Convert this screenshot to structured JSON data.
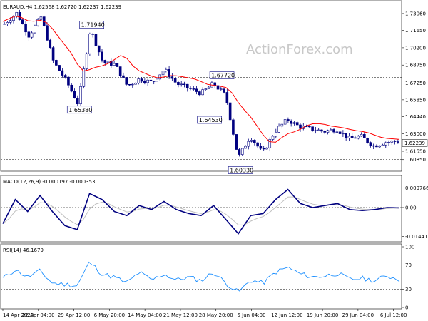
{
  "watermark": "ActionForex.com",
  "chart_data": [
    {
      "type": "candlestick",
      "header": "EURAUD,H4  1.62568 1.62720 1.62237 1.62239",
      "ylim": [
        1.6,
        1.7395
      ],
      "yticks": [
        "1.73060",
        "1.71650",
        "1.70200",
        "1.68750",
        "1.67250",
        "1.65850",
        "1.64440",
        "1.63000",
        "1.61550",
        "1.60850"
      ],
      "current_price_label": "1.62239",
      "current_price": 1.62239,
      "levels": [
        {
          "label": "1.67720",
          "value": 1.6772
        },
        {
          "label": "1.60850",
          "value": 1.6085
        }
      ],
      "annotations": [
        {
          "label": "1.71940",
          "index": 14,
          "value": 1.7194
        },
        {
          "label": "1.65380",
          "index": 12,
          "value": 1.6538
        },
        {
          "label": "1.67720",
          "index": 35,
          "value": 1.6772
        },
        {
          "label": "1.64530",
          "index": 33,
          "value": 1.6453
        },
        {
          "label": "1.60330",
          "index": 38,
          "value": 1.6033
        }
      ],
      "ohlc_anchors": [
        [
          0,
          1.722
        ],
        [
          2,
          1.731
        ],
        [
          4,
          1.712
        ],
        [
          6,
          1.728
        ],
        [
          8,
          1.69
        ],
        [
          10,
          1.675
        ],
        [
          12,
          1.655
        ],
        [
          14,
          1.718
        ],
        [
          16,
          1.69
        ],
        [
          18,
          1.688
        ],
        [
          20,
          1.67
        ],
        [
          22,
          1.676
        ],
        [
          24,
          1.673
        ],
        [
          26,
          1.684
        ],
        [
          28,
          1.672
        ],
        [
          30,
          1.668
        ],
        [
          32,
          1.664
        ],
        [
          34,
          1.672
        ],
        [
          36,
          1.662
        ],
        [
          38,
          1.61
        ],
        [
          40,
          1.628
        ],
        [
          42,
          1.614
        ],
        [
          44,
          1.632
        ],
        [
          46,
          1.642
        ],
        [
          48,
          1.636
        ],
        [
          50,
          1.634
        ],
        [
          52,
          1.632
        ],
        [
          54,
          1.634
        ],
        [
          56,
          1.626
        ],
        [
          58,
          1.628
        ],
        [
          60,
          1.62
        ],
        [
          62,
          1.623
        ],
        [
          64,
          1.6239
        ]
      ],
      "ma_color": "#ff0000",
      "candle_color": "#000080",
      "x_tick_labels": [
        "14 Apr 2020",
        "22 Apr 04:00",
        "29 Apr 12:00",
        "6 May 20:00",
        "14 May 04:00",
        "21 May 12:00",
        "28 May 20:00",
        "5 Jun 04:00",
        "12 Jun 12:00",
        "19 Jun 20:00",
        "29 Jun 04:00",
        "6 Jul 12:00"
      ]
    },
    {
      "type": "line",
      "header": "MACD(12,26,9) -0.000197 -0.000353",
      "ylim": [
        -0.016,
        0.011
      ],
      "yticks": [
        "0.009766",
        "0.00",
        "-0.014417"
      ],
      "series": [
        {
          "values_anchor": [
            [
              0,
              -0.008
            ],
            [
              2,
              0.004
            ],
            [
              4,
              -0.002
            ],
            [
              6,
              0.006
            ],
            [
              8,
              -0.002
            ],
            [
              10,
              -0.009
            ],
            [
              12,
              -0.011
            ],
            [
              14,
              0.007
            ],
            [
              16,
              0.004
            ],
            [
              18,
              -0.002
            ],
            [
              20,
              -0.004
            ],
            [
              22,
              0.001
            ],
            [
              24,
              -0.001
            ],
            [
              26,
              0.003
            ],
            [
              28,
              -0.001
            ],
            [
              30,
              -0.003
            ],
            [
              32,
              -0.004
            ],
            [
              34,
              0.001
            ],
            [
              36,
              -0.006
            ],
            [
              38,
              -0.013
            ],
            [
              40,
              -0.004
            ],
            [
              42,
              -0.003
            ],
            [
              44,
              0.004
            ],
            [
              46,
              0.009
            ],
            [
              48,
              0.002
            ],
            [
              50,
              0.0
            ],
            [
              52,
              0.001
            ],
            [
              54,
              0.002
            ],
            [
              56,
              -0.001
            ],
            [
              58,
              -0.0015
            ],
            [
              60,
              -0.001
            ],
            [
              62,
              0.0
            ],
            [
              64,
              -0.0002
            ]
          ]
        }
      ],
      "line_color": "#000080",
      "signal_color": "#c0c0c0"
    },
    {
      "type": "line",
      "header": "RSI(14) 46.1679",
      "ylim": [
        0,
        100
      ],
      "yticks": [
        "100",
        "70",
        "30",
        "0"
      ],
      "levels": [
        70,
        30
      ],
      "series": [
        {
          "values_anchor": [
            [
              0,
              48
            ],
            [
              2,
              62
            ],
            [
              4,
              50
            ],
            [
              6,
              60
            ],
            [
              8,
              40
            ],
            [
              10,
              38
            ],
            [
              12,
              36
            ],
            [
              14,
              75
            ],
            [
              16,
              55
            ],
            [
              18,
              50
            ],
            [
              20,
              40
            ],
            [
              22,
              58
            ],
            [
              24,
              45
            ],
            [
              26,
              55
            ],
            [
              28,
              45
            ],
            [
              30,
              50
            ],
            [
              32,
              44
            ],
            [
              34,
              58
            ],
            [
              36,
              40
            ],
            [
              38,
              25
            ],
            [
              40,
              45
            ],
            [
              42,
              40
            ],
            [
              44,
              58
            ],
            [
              46,
              66
            ],
            [
              48,
              55
            ],
            [
              50,
              50
            ],
            [
              52,
              52
            ],
            [
              54,
              56
            ],
            [
              56,
              46
            ],
            [
              58,
              48
            ],
            [
              60,
              44
            ],
            [
              62,
              52
            ],
            [
              64,
              46
            ]
          ]
        }
      ],
      "line_color": "#1e90ff"
    }
  ]
}
